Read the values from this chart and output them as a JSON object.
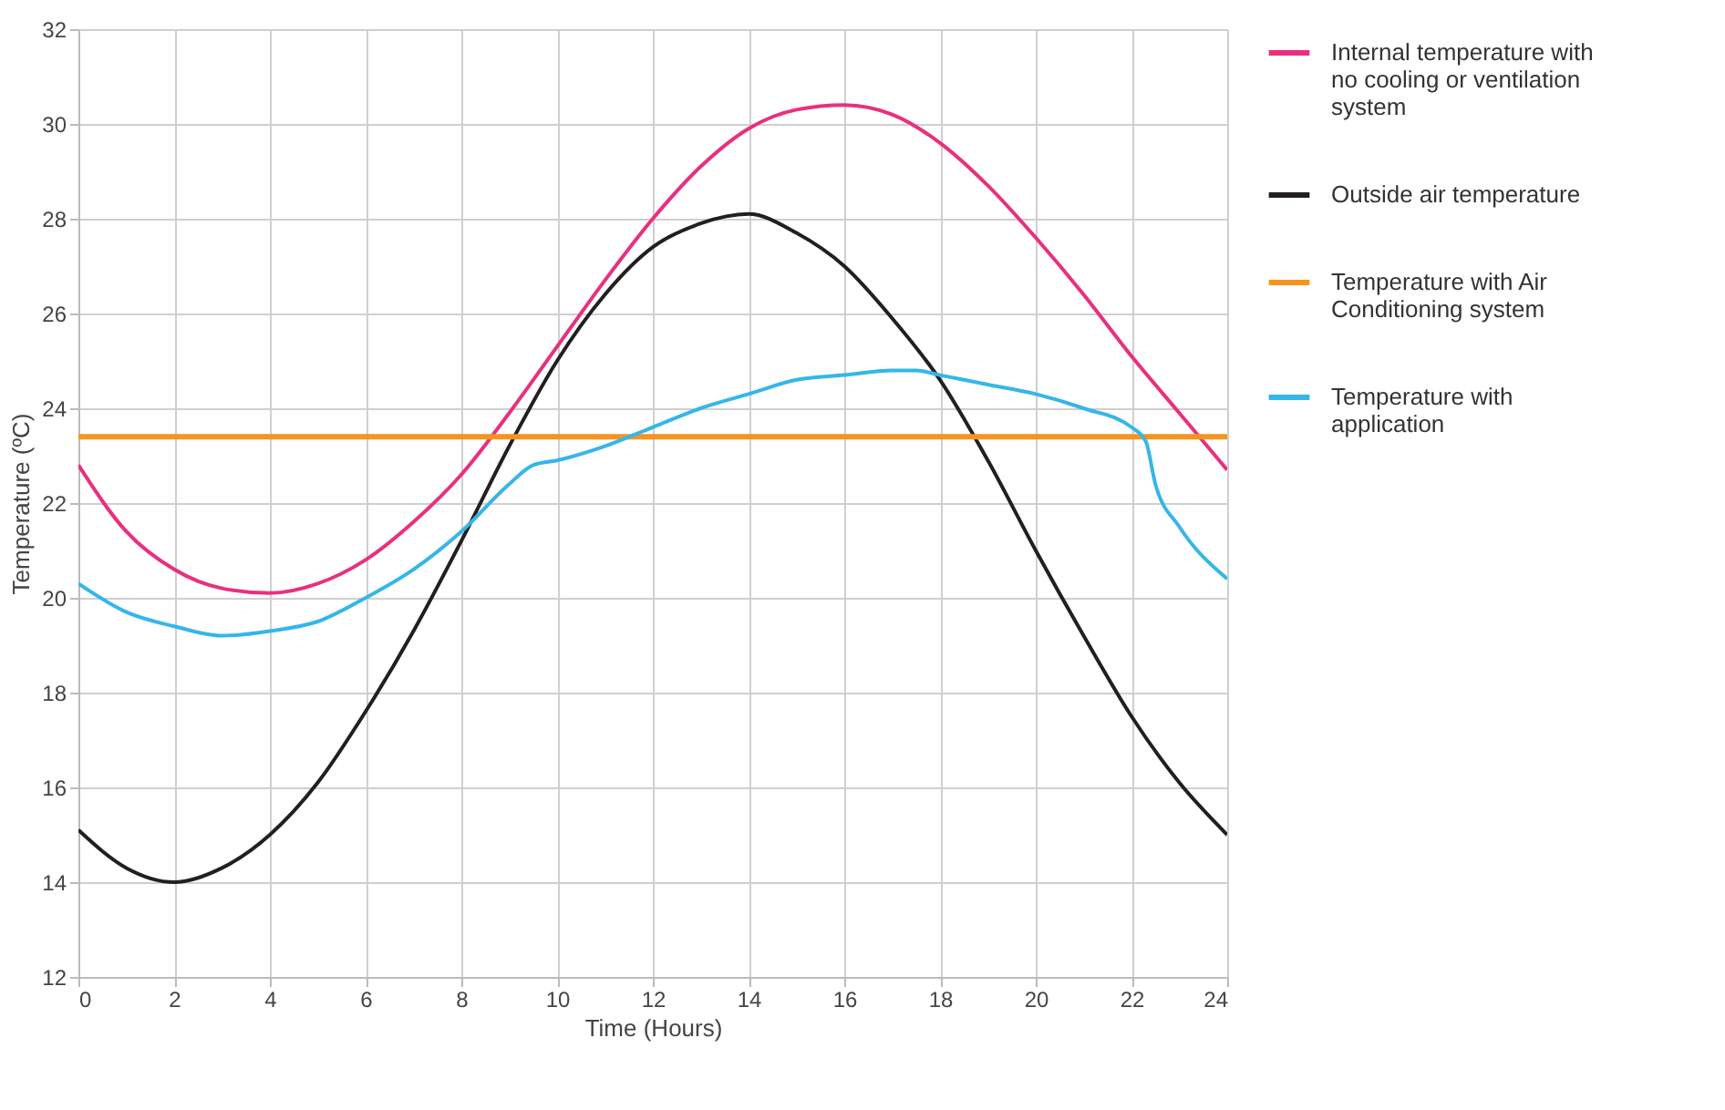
{
  "chart_data": {
    "type": "line",
    "xlabel": "Time (Hours)",
    "ylabel": "Temperature (ºC)",
    "xlim": [
      0,
      24
    ],
    "xticks": [
      0,
      2,
      4,
      6,
      8,
      10,
      12,
      14,
      16,
      18,
      20,
      22,
      24
    ],
    "ylim": [
      12,
      32
    ],
    "yticks": [
      12,
      14,
      16,
      18,
      20,
      22,
      24,
      26,
      28,
      30,
      32
    ],
    "grid": true,
    "legend": "right",
    "marker": "none",
    "line_style": "solid",
    "series": [
      {
        "name": "Internal temperature with no cooling or ventilation system",
        "color": "#e8307f",
        "x": [
          0,
          1,
          2,
          3,
          4,
          5,
          6,
          7,
          8,
          9,
          10,
          11,
          12,
          13,
          14,
          15,
          16,
          17,
          18,
          19,
          20,
          21,
          22,
          23,
          24
        ],
        "values": [
          22.8,
          21.4,
          20.6,
          20.2,
          20.1,
          20.3,
          20.8,
          21.6,
          22.6,
          23.9,
          25.3,
          26.7,
          28.0,
          29.1,
          29.9,
          30.3,
          30.4,
          30.2,
          29.6,
          28.7,
          27.6,
          26.4,
          25.1,
          23.9,
          22.7
        ]
      },
      {
        "name": "Outside air temperature",
        "color": "#231f20",
        "x": [
          0,
          1,
          2,
          3,
          4,
          5,
          6,
          7,
          8,
          9,
          10,
          11,
          12,
          13,
          14,
          15,
          16,
          17,
          18,
          19,
          20,
          21,
          22,
          23,
          24
        ],
        "values": [
          15.1,
          14.3,
          14.0,
          14.3,
          15.0,
          16.1,
          17.6,
          19.3,
          21.2,
          23.2,
          25.0,
          26.4,
          27.4,
          27.9,
          28.1,
          27.7,
          27.0,
          25.9,
          24.6,
          22.9,
          21.0,
          19.2,
          17.5,
          16.1,
          15.0
        ]
      },
      {
        "name": "Temperature with Air Conditioning system",
        "color": "#f7941d",
        "x": [
          0,
          24
        ],
        "values": [
          23.4,
          23.4
        ]
      },
      {
        "name": "Temperature with application",
        "color": "#35b6e9",
        "x": [
          0,
          1,
          2,
          3,
          4,
          5,
          6,
          7,
          8,
          9,
          9.5,
          10,
          11,
          12,
          13,
          14,
          15,
          16,
          17,
          17.5,
          18,
          19,
          20,
          21,
          22,
          22.3,
          22.5,
          23,
          24
        ],
        "values": [
          20.3,
          19.7,
          19.4,
          19.2,
          19.3,
          19.5,
          20.0,
          20.6,
          21.4,
          22.4,
          22.8,
          22.9,
          23.2,
          23.6,
          24.0,
          24.3,
          24.6,
          24.7,
          24.8,
          24.8,
          24.7,
          24.5,
          24.3,
          24.0,
          23.6,
          23.3,
          22.4,
          21.5,
          20.4
        ]
      }
    ]
  }
}
